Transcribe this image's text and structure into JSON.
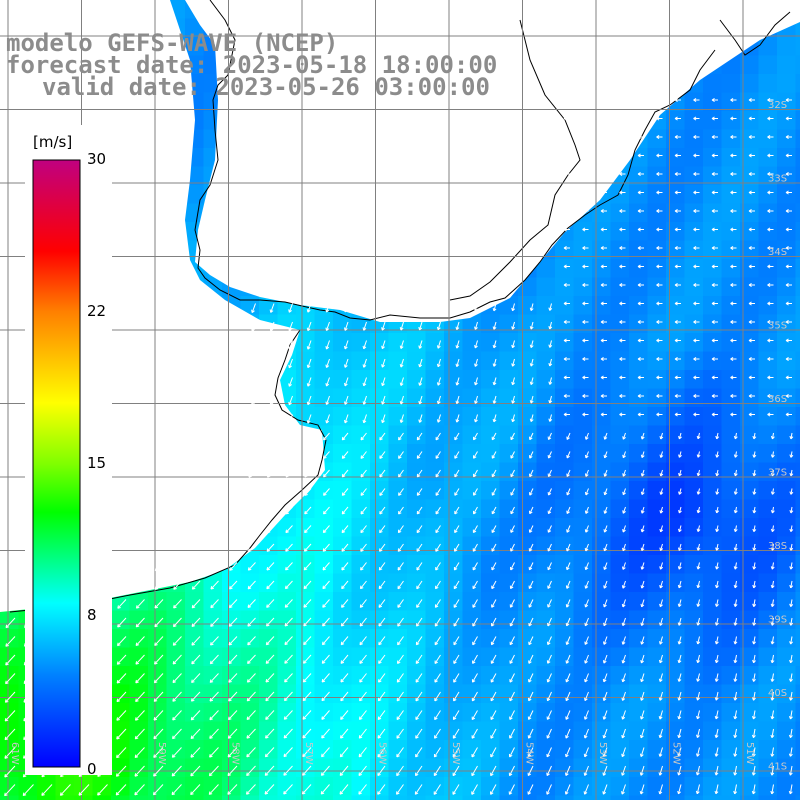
{
  "title": {
    "line1": "modelo GEFS-WAVE (NCEP)",
    "line2": "forecast date: 2023-05-18 18:00:00",
    "line3": "valid date: 2023-05-26 03:00:00"
  },
  "colorbar": {
    "units": "[m/s]",
    "ticks": [
      "30",
      "22",
      "15",
      "8",
      "0"
    ],
    "tick_values": [
      30,
      22,
      15,
      8,
      0
    ],
    "range": [
      0,
      30
    ],
    "colors": [
      "#0000ff",
      "#0080ff",
      "#00ffff",
      "#00ff00",
      "#80ff00",
      "#ffff00",
      "#ff8000",
      "#ff0000",
      "#c00080"
    ]
  },
  "map": {
    "lat_labels": [
      "32S",
      "33S",
      "34S",
      "35S",
      "36S",
      "37S",
      "38S",
      "39S",
      "40S",
      "41S"
    ],
    "lon_labels": [
      "61W",
      "60W",
      "59W",
      "58W",
      "57W",
      "56W",
      "55W",
      "54W",
      "53W",
      "52W",
      "51W"
    ],
    "land_color": "#ffffff",
    "grid_color": "#808080",
    "arrow_color": "#ffffff"
  }
}
